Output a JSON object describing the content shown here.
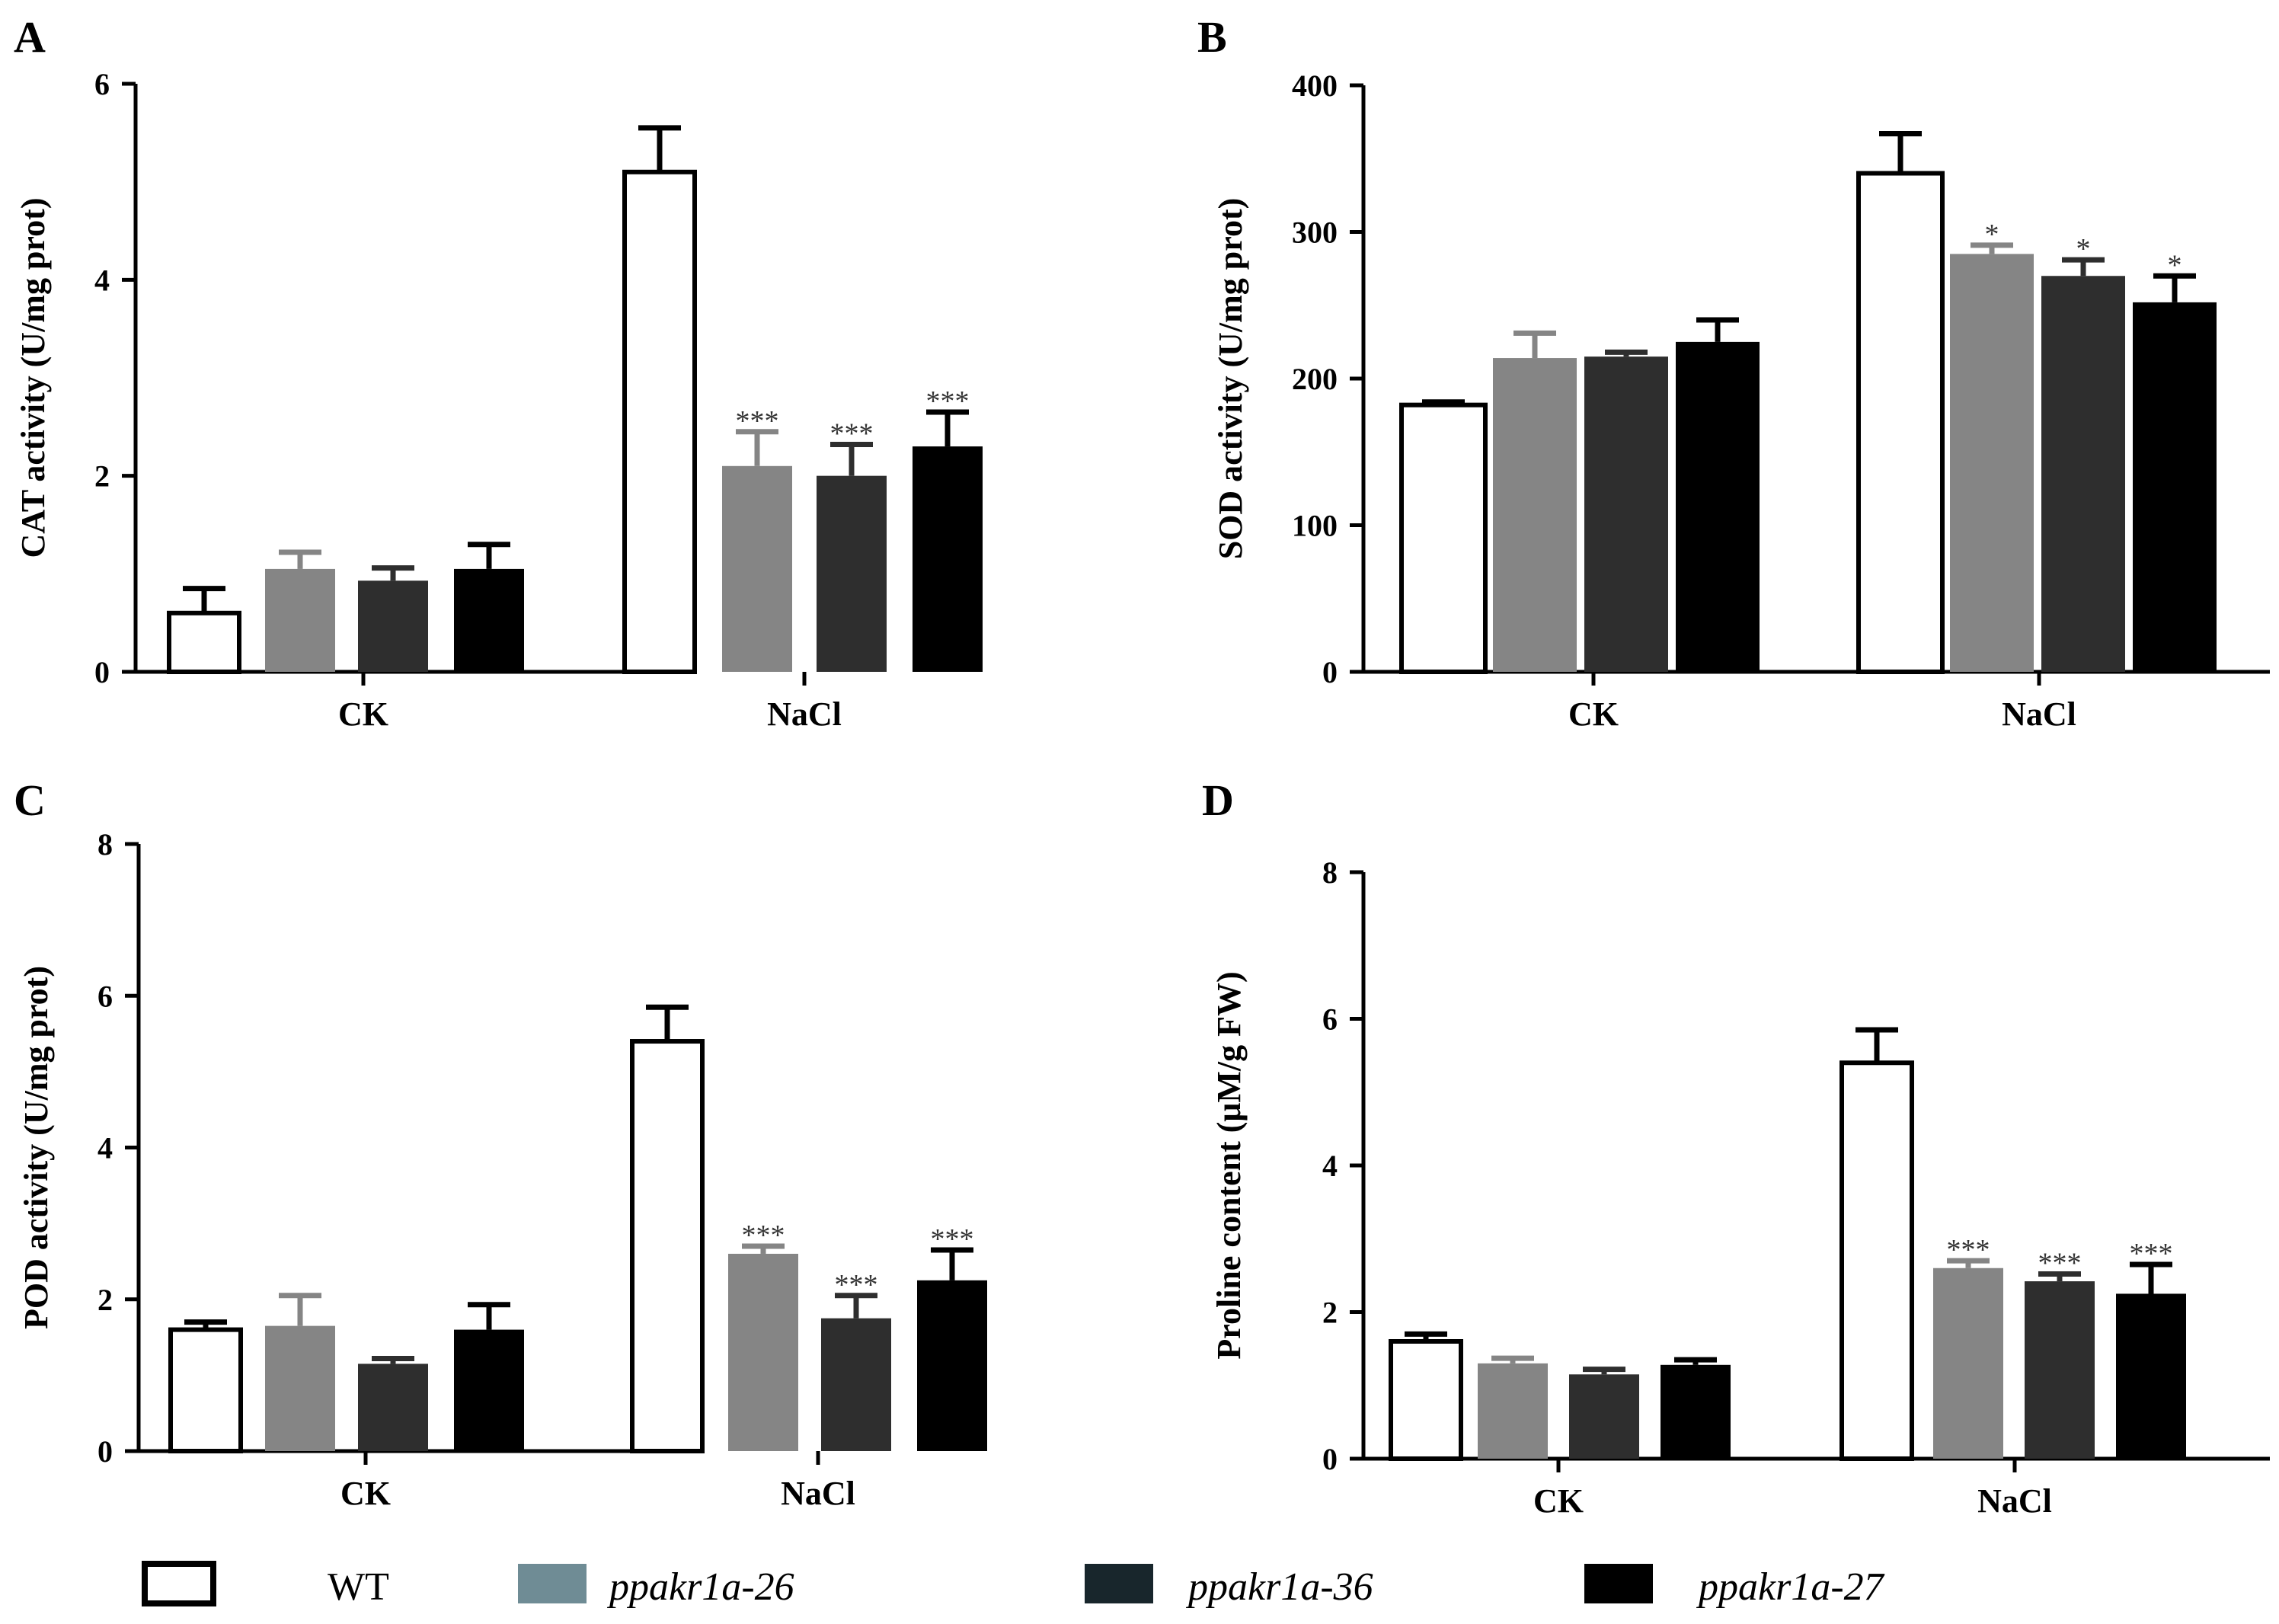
{
  "chart_data": [
    {
      "type": "bar",
      "panel": "A",
      "ylabel": "CAT activity (U/mg prot)",
      "categories": [
        "CK",
        "NaCl"
      ],
      "ylim": [
        0,
        6
      ],
      "yticks": [
        0,
        2,
        4,
        6
      ],
      "series": [
        {
          "name": "WT",
          "values": [
            0.6,
            5.1
          ],
          "errors": [
            0.25,
            0.45
          ],
          "stars": [
            "",
            ""
          ]
        },
        {
          "name": "ppakr1a-26",
          "values": [
            1.05,
            2.1
          ],
          "errors": [
            0.17,
            0.35
          ],
          "stars": [
            "",
            "***"
          ]
        },
        {
          "name": "ppakr1a-36",
          "values": [
            0.93,
            2.0
          ],
          "errors": [
            0.13,
            0.32
          ],
          "stars": [
            "",
            "***"
          ]
        },
        {
          "name": "ppakr1a-27",
          "values": [
            1.05,
            2.3
          ],
          "errors": [
            0.25,
            0.35
          ],
          "stars": [
            "",
            "***"
          ]
        }
      ]
    },
    {
      "type": "bar",
      "panel": "B",
      "ylabel": "SOD activity (U/mg prot)",
      "categories": [
        "CK",
        "NaCl"
      ],
      "ylim": [
        0,
        400
      ],
      "yticks": [
        0,
        100,
        200,
        300,
        400
      ],
      "series": [
        {
          "name": "WT",
          "values": [
            182,
            340
          ],
          "errors": [
            2,
            27
          ],
          "stars": [
            "",
            ""
          ]
        },
        {
          "name": "ppakr1a-26",
          "values": [
            214,
            285
          ],
          "errors": [
            17,
            6
          ],
          "stars": [
            "",
            "*"
          ]
        },
        {
          "name": "ppakr1a-36",
          "values": [
            215,
            270
          ],
          "errors": [
            3,
            11
          ],
          "stars": [
            "",
            "*"
          ]
        },
        {
          "name": "ppakr1a-27",
          "values": [
            225,
            252
          ],
          "errors": [
            15,
            18
          ],
          "stars": [
            "",
            "*"
          ]
        }
      ]
    },
    {
      "type": "bar",
      "panel": "C",
      "ylabel": "POD activity (U/mg prot)",
      "categories": [
        "CK",
        "NaCl"
      ],
      "ylim": [
        0,
        8
      ],
      "yticks": [
        0,
        2,
        4,
        6,
        8
      ],
      "series": [
        {
          "name": "WT",
          "values": [
            1.6,
            5.4
          ],
          "errors": [
            0.1,
            0.45
          ],
          "stars": [
            "",
            ""
          ]
        },
        {
          "name": "ppakr1a-26",
          "values": [
            1.65,
            2.6
          ],
          "errors": [
            0.4,
            0.1
          ],
          "stars": [
            "",
            "***"
          ]
        },
        {
          "name": "ppakr1a-36",
          "values": [
            1.15,
            1.75
          ],
          "errors": [
            0.07,
            0.3
          ],
          "stars": [
            "",
            "***"
          ]
        },
        {
          "name": "ppakr1a-27",
          "values": [
            1.6,
            2.25
          ],
          "errors": [
            0.33,
            0.4
          ],
          "stars": [
            "",
            "***"
          ]
        }
      ]
    },
    {
      "type": "bar",
      "panel": "D",
      "ylabel": "Proline content (μM/g FW)",
      "categories": [
        "CK",
        "NaCl"
      ],
      "ylim": [
        0,
        8
      ],
      "yticks": [
        0,
        2,
        4,
        6,
        8
      ],
      "series": [
        {
          "name": "WT",
          "values": [
            1.6,
            5.4
          ],
          "errors": [
            0.1,
            0.45
          ],
          "stars": [
            "",
            ""
          ]
        },
        {
          "name": "ppakr1a-26",
          "values": [
            1.3,
            2.6
          ],
          "errors": [
            0.07,
            0.1
          ],
          "stars": [
            "",
            "***"
          ]
        },
        {
          "name": "ppakr1a-36",
          "values": [
            1.15,
            2.42
          ],
          "errors": [
            0.07,
            0.1
          ],
          "stars": [
            "",
            "***"
          ]
        },
        {
          "name": "ppakr1a-27",
          "values": [
            1.28,
            2.25
          ],
          "errors": [
            0.07,
            0.4
          ],
          "stars": [
            "",
            "***"
          ]
        }
      ]
    }
  ],
  "legend": [
    {
      "name": "WT",
      "fill": "#ffffff",
      "italic": false
    },
    {
      "name": "ppakr1a-26",
      "fill": "#6f8c95",
      "italic": true
    },
    {
      "name": "ppakr1a-36",
      "fill": "#18262c",
      "italic": true
    },
    {
      "name": "ppakr1a-27",
      "fill": "#000000",
      "italic": true
    }
  ],
  "series_colors": [
    "#ffffff",
    "#858585",
    "#2e2e2e",
    "#000000"
  ],
  "error_colors": [
    "#000000",
    "#858585",
    "#2e2e2e",
    "#000000"
  ]
}
